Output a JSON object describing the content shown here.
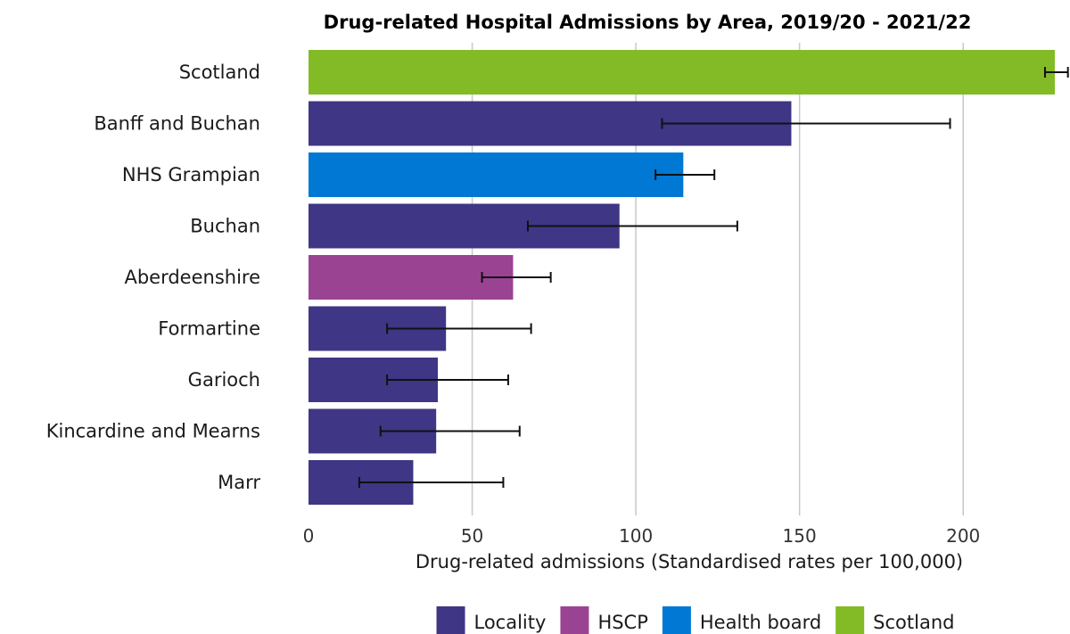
{
  "chart_data": {
    "type": "bar",
    "orientation": "horizontal",
    "title": "Drug-related Hospital Admissions by Area, 2019/20 - 2021/22",
    "xlabel": "Drug-related admissions (Standardised rates per 100,000)",
    "ylabel": "",
    "xlim": [
      0,
      232
    ],
    "xticks": [
      0,
      50,
      100,
      150,
      200
    ],
    "grid": "vertical major gridlines",
    "highlight_color": "#ff0000",
    "groups": [
      {
        "key": "locality",
        "name": "Locality",
        "color": "#3f3685"
      },
      {
        "key": "hscp",
        "name": "HSCP",
        "color": "#9b4393"
      },
      {
        "key": "healthboard",
        "name": "Health board",
        "color": "#0078d4"
      },
      {
        "key": "scotland",
        "name": "Scotland",
        "color": "#83bb26"
      }
    ],
    "bars": [
      {
        "label": "Scotland",
        "value": 228,
        "ci_low": 225,
        "ci_high": 232,
        "group": "scotland",
        "highlight": false
      },
      {
        "label": "Banff and Buchan",
        "value": 147.5,
        "ci_low": 108,
        "ci_high": 196,
        "group": "locality",
        "highlight": false
      },
      {
        "label": "NHS Grampian",
        "value": 114.5,
        "ci_low": 106,
        "ci_high": 124,
        "group": "healthboard",
        "highlight": false
      },
      {
        "label": "Buchan",
        "value": 95,
        "ci_low": 67,
        "ci_high": 131,
        "group": "locality",
        "highlight": true
      },
      {
        "label": "Aberdeenshire",
        "value": 62.5,
        "ci_low": 53,
        "ci_high": 74,
        "group": "hscp",
        "highlight": false
      },
      {
        "label": "Formartine",
        "value": 42,
        "ci_low": 24,
        "ci_high": 68,
        "group": "locality",
        "highlight": false
      },
      {
        "label": "Garioch",
        "value": 39.5,
        "ci_low": 24,
        "ci_high": 61,
        "group": "locality",
        "highlight": false
      },
      {
        "label": "Kincardine and Mearns",
        "value": 39,
        "ci_low": 22,
        "ci_high": 64.5,
        "group": "locality",
        "highlight": false
      },
      {
        "label": "Marr",
        "value": 32,
        "ci_low": 15.5,
        "ci_high": 59.5,
        "group": "locality",
        "highlight": false
      }
    ],
    "legend": {
      "position": "bottom"
    }
  }
}
